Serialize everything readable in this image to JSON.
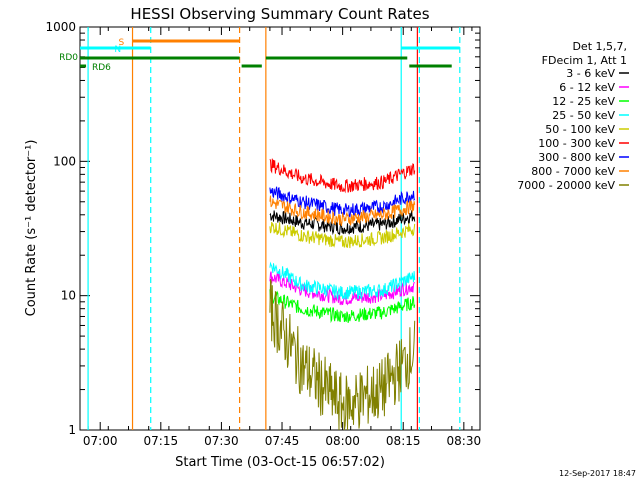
{
  "chart_data": {
    "type": "line",
    "title": "HESSI Observing Summary Count Rates",
    "xlabel": "Start Time (03-Oct-15 06:57:02)",
    "ylabel": "Count Rate (s⁻¹ detector⁻¹)",
    "yscale": "log",
    "ylim": [
      1,
      1000
    ],
    "xlim_minutes_after_start": [
      -2.0,
      97.0
    ],
    "xticks": [
      "07:00",
      "07:15",
      "07:30",
      "07:45",
      "08:00",
      "08:15",
      "08:30"
    ],
    "xtick_minutes": [
      3,
      18,
      33,
      48,
      63,
      78,
      93
    ],
    "yticks": [
      "1",
      "10",
      "100",
      "1000"
    ],
    "ytick_values": [
      1,
      10,
      100,
      1000
    ],
    "legend_header": [
      "Det 1,5,7,",
      "FDecim 1, Att 1"
    ],
    "legend_position": "right",
    "series": [
      {
        "name": "3 - 6 keV",
        "color": "#000000",
        "values": [
          40,
          35,
          32,
          34,
          40
        ]
      },
      {
        "name": "6 - 12 keV",
        "color": "#ff00ff",
        "values": [
          14,
          11,
          9.5,
          10,
          12
        ]
      },
      {
        "name": "12 - 25 keV",
        "color": "#00ff00",
        "values": [
          10,
          8.0,
          7.0,
          7.5,
          9
        ]
      },
      {
        "name": "25 - 50 keV",
        "color": "#00ffff",
        "values": [
          17,
          12,
          10.5,
          11,
          14
        ]
      },
      {
        "name": "50 - 100 keV",
        "color": "#cccc00",
        "values": [
          33,
          28,
          25,
          27,
          32
        ]
      },
      {
        "name": "100 - 300 keV",
        "color": "#ff0000",
        "values": [
          95,
          75,
          65,
          70,
          90
        ]
      },
      {
        "name": "300 - 800 keV",
        "color": "#0000ff",
        "values": [
          60,
          50,
          43,
          46,
          58
        ]
      },
      {
        "name": "800 - 7000 keV",
        "color": "#ff8000",
        "values": [
          50,
          42,
          37,
          40,
          47
        ]
      },
      {
        "name": "7000 - 20000 keV",
        "color": "#808000",
        "values": [
          8,
          3,
          1.5,
          2,
          4
        ]
      }
    ],
    "series_x_minutes": [
      45,
      53,
      63,
      73,
      81
    ],
    "flag_bars": [
      {
        "label": "S",
        "color": "#ff8000",
        "segments": [
          [
            11,
            37.5
          ]
        ]
      },
      {
        "label": "N",
        "color": "#00ffff",
        "segments": [
          [
            -2,
            15.5
          ],
          [
            77.5,
            92
          ]
        ]
      },
      {
        "label": "RD0",
        "color": "#008000",
        "segments": [
          [
            -2,
            37.5
          ],
          [
            44,
            79
          ]
        ]
      },
      {
        "label": "RD6",
        "color": "#008000",
        "segments": [
          [
            -2,
            -0.5
          ],
          [
            38,
            43
          ],
          [
            79.5,
            90
          ]
        ]
      }
    ],
    "vertical_markers": [
      {
        "minute": 0.0,
        "color": "#00ffff",
        "style": "solid"
      },
      {
        "minute": 11.0,
        "color": "#ff8000",
        "style": "solid"
      },
      {
        "minute": 15.5,
        "color": "#00ffff",
        "style": "dashed"
      },
      {
        "minute": 37.5,
        "color": "#ff8000",
        "style": "dashed"
      },
      {
        "minute": 44.0,
        "color": "#ff8000",
        "style": "solid"
      },
      {
        "minute": 77.5,
        "color": "#00ffff",
        "style": "solid"
      },
      {
        "minute": 81.5,
        "color": "#ff0000",
        "style": "solid"
      },
      {
        "minute": 82.0,
        "color": "#00ffff",
        "style": "dashed"
      },
      {
        "minute": 92.0,
        "color": "#00ffff",
        "style": "dashed"
      }
    ],
    "footer_date": "12-Sep-2017 18:47"
  }
}
